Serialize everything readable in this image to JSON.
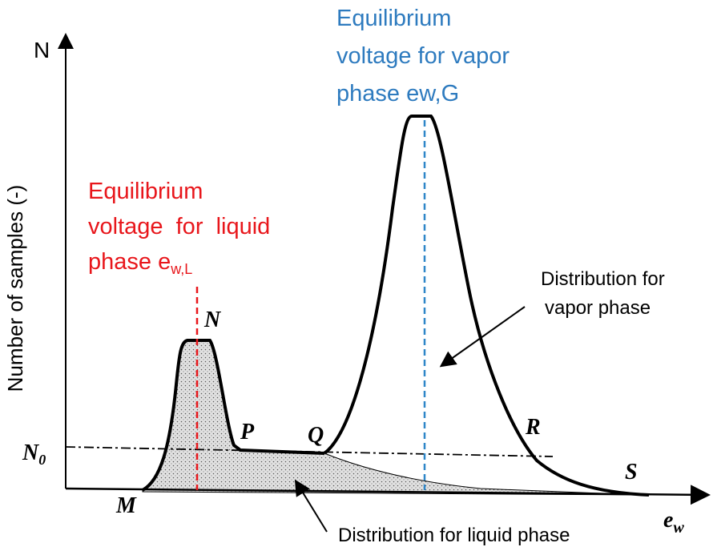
{
  "y_axis": {
    "symbol": "N",
    "label": "Number of samples (-)"
  },
  "x_axis": {
    "symbol": "e",
    "subscript": "w"
  },
  "n0_label": {
    "text": "N",
    "subscript": "0"
  },
  "vapor_label": {
    "lines": [
      "Equilibrium",
      "voltage for vapor",
      "phase ew,G"
    ]
  },
  "liquid_label": {
    "lines": [
      "Equilibrium",
      "voltage  for  liquid",
      "phase e"
    ],
    "subscript": "w,L"
  },
  "vapor_note": {
    "lines": [
      "Distribution for",
      "vapor phase"
    ]
  },
  "liquid_note": {
    "text": "Distribution for liquid phase"
  },
  "points": {
    "N": "N",
    "P": "P",
    "Q": "Q",
    "R": "R",
    "S": "S",
    "M": "M"
  }
}
